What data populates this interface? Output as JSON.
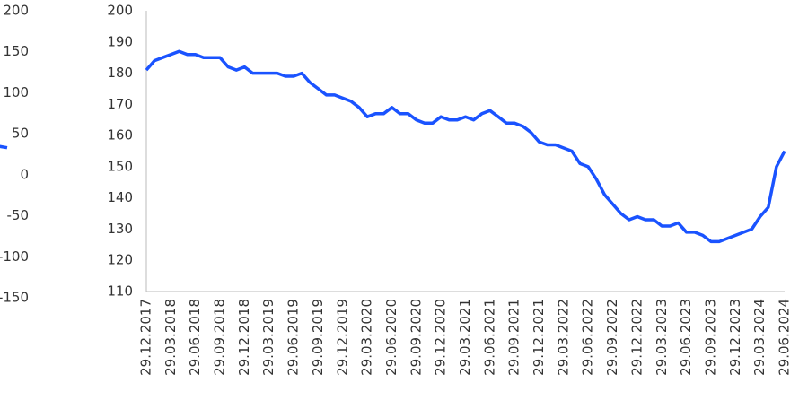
{
  "chart_data": [
    {
      "type": "line",
      "yticks": [
        200,
        150,
        100,
        50,
        0,
        -50,
        -100,
        -150
      ],
      "ylim": [
        -150,
        200
      ],
      "categories": [
        null,
        null
      ],
      "series": [
        {
          "color": "#1a53ff",
          "values": [
            42,
            33
          ]
        }
      ]
    },
    {
      "type": "line",
      "ylim": [
        110,
        200
      ],
      "yticks": [
        110,
        120,
        130,
        140,
        150,
        160,
        170,
        180,
        190,
        200
      ],
      "categories": [
        "29.12.2017",
        null,
        null,
        "29.03.2018",
        null,
        null,
        "29.06.2018",
        null,
        null,
        "29.09.2018",
        null,
        null,
        "29.12.2018",
        null,
        null,
        "29.03.2019",
        null,
        null,
        "29.06.2019",
        null,
        null,
        "29.09.2019",
        null,
        null,
        "29.12.2019",
        null,
        null,
        "29.03.2020",
        null,
        null,
        "29.06.2020",
        null,
        null,
        "29.09.2020",
        null,
        null,
        "29.12.2020",
        null,
        null,
        "29.03.2021",
        null,
        null,
        "29.06.2021",
        null,
        null,
        "29.09.2021",
        null,
        null,
        "29.12.2021",
        null,
        null,
        "29.03.2022",
        null,
        null,
        "29.06.2022",
        null,
        null,
        "29.09.2022",
        null,
        null,
        "29.12.2022",
        null,
        null,
        "29.03.2023",
        null,
        null,
        "29.06.2023",
        null,
        null,
        "29.09.2023",
        null,
        null,
        "29.12.2023",
        null,
        null,
        "29.03.2024",
        null,
        null,
        "29.06.2024"
      ],
      "series": [
        {
          "color": "#1a53ff",
          "values": [
            181,
            184,
            185,
            186,
            187,
            186,
            186,
            185,
            185,
            185,
            182,
            181,
            182,
            180,
            180,
            180,
            180,
            179,
            179,
            180,
            177,
            175,
            173,
            173,
            172,
            171,
            169,
            166,
            167,
            167,
            169,
            167,
            167,
            165,
            164,
            164,
            166,
            165,
            165,
            166,
            165,
            167,
            168,
            166,
            164,
            164,
            163,
            161,
            158,
            157,
            157,
            156,
            155,
            151,
            150,
            146,
            141,
            138,
            135,
            133,
            134,
            133,
            133,
            131,
            131,
            132,
            129,
            129,
            128,
            126,
            126,
            127,
            128,
            129,
            130,
            134,
            137,
            150,
            155
          ]
        }
      ]
    }
  ]
}
